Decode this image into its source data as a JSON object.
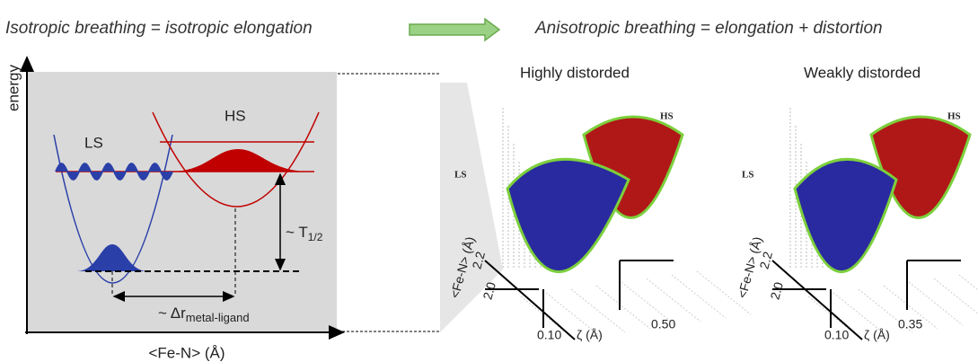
{
  "header": {
    "left": "Isotropic breathing = isotropic elongation",
    "right": "Anisotropic breathing = elongation + distortion"
  },
  "diagram": {
    "y_label": "energy",
    "x_label": "<Fe-N> (Å)",
    "ls": "LS",
    "hs": "HS",
    "t_half": {
      "tilde": "~",
      "main": "T",
      "sub": "1/2"
    },
    "delta_r": {
      "tilde": "~",
      "main": "Δr",
      "sub": "metal-ligand"
    }
  },
  "plots": [
    {
      "title": "Highly distorded",
      "hs": "HS",
      "ls": "LS",
      "y_axis": "<Fe-N> (Å)",
      "y_ticks": [
        "2.2",
        "2.0"
      ],
      "x_tick_low": "0.10",
      "x_axis": "ζ (Å)",
      "x_tick_high": "0.50"
    },
    {
      "title": "Weakly distorded",
      "hs": "HS",
      "ls": "LS",
      "y_axis": "<Fe-N> (Å)",
      "y_ticks": [
        "2.2",
        "2.0"
      ],
      "x_tick_low": "0.10",
      "x_axis": "ζ (Å)",
      "x_tick_high": "0.35"
    }
  ]
}
